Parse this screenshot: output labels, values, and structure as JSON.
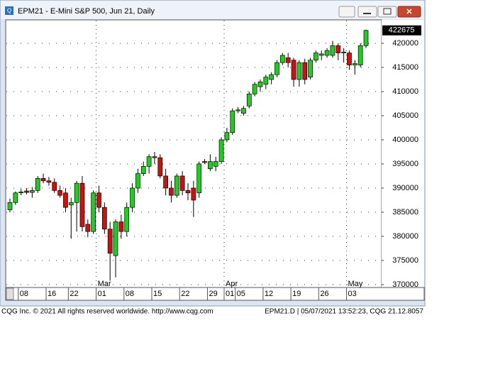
{
  "window_title": "EPM21 - E-Mini S&P 500, Jun 21, Daily",
  "chart_data": {
    "type": "candlestick",
    "categories": [
      null,
      null,
      "08",
      null,
      null,
      null,
      null,
      "16",
      null,
      null,
      null,
      "22",
      null,
      null,
      null,
      null,
      "01",
      null,
      null,
      null,
      null,
      "08",
      null,
      null,
      null,
      null,
      "15",
      null,
      null,
      null,
      null,
      "22",
      null,
      null,
      null,
      null,
      "29",
      null,
      null,
      "01",
      null,
      "05",
      null,
      null,
      null,
      null,
      "12",
      null,
      null,
      null,
      null,
      "19",
      null,
      null,
      null,
      null,
      "26",
      null,
      null,
      null,
      null,
      "03",
      null,
      null,
      null
    ],
    "month_categories": [
      null,
      null,
      null,
      null,
      null,
      null,
      null,
      null,
      null,
      null,
      null,
      null,
      null,
      null,
      null,
      null,
      "Mar",
      null,
      null,
      null,
      null,
      null,
      null,
      null,
      null,
      null,
      null,
      null,
      null,
      null,
      null,
      null,
      null,
      null,
      null,
      null,
      null,
      null,
      null,
      "Apr",
      null,
      null,
      null,
      null,
      null,
      null,
      null,
      null,
      null,
      null,
      null,
      null,
      null,
      null,
      null,
      null,
      null,
      null,
      null,
      null,
      null,
      "May",
      null,
      null,
      null
    ],
    "open": [
      385500,
      387000,
      389000,
      389400,
      389100,
      389500,
      392000,
      391500,
      391200,
      389500,
      389000,
      386500,
      387000,
      391000,
      382500,
      381000,
      389000,
      386000,
      381500,
      376000,
      383000,
      381000,
      386000,
      390000,
      393000,
      394500,
      396500,
      396300,
      392500,
      390000,
      388500,
      392500,
      389500,
      390000,
      389000,
      395500,
      394000,
      394500,
      395500,
      400000,
      401500,
      406000,
      405500,
      407000,
      409500,
      411000,
      411500,
      412500,
      413500,
      416000,
      417000,
      416500,
      412500,
      416000,
      413000,
      416500,
      417500,
      417500,
      417500,
      419500,
      418000,
      418000,
      415500,
      415500,
      419500
    ],
    "high": [
      387800,
      389300,
      389800,
      390000,
      390200,
      392500,
      393000,
      392300,
      392000,
      390500,
      390000,
      388000,
      391500,
      392500,
      383500,
      389500,
      390500,
      387000,
      383000,
      383500,
      384500,
      387000,
      391000,
      394000,
      395500,
      397000,
      397500,
      397000,
      394000,
      391500,
      393000,
      393500,
      391000,
      391500,
      395500,
      396000,
      397000,
      396500,
      400500,
      402500,
      406500,
      406800,
      407000,
      410000,
      412000,
      412500,
      413500,
      414000,
      416500,
      418000,
      418000,
      417000,
      416500,
      416800,
      417000,
      418500,
      418500,
      419000,
      420500,
      420000,
      419000,
      418500,
      416500,
      420000,
      422800
    ],
    "low": [
      385000,
      386500,
      388500,
      388700,
      388000,
      389000,
      391000,
      390500,
      389000,
      388000,
      385000,
      379500,
      381000,
      381000,
      379800,
      380500,
      385000,
      380500,
      370800,
      371500,
      379500,
      380000,
      385000,
      389000,
      392500,
      393000,
      395000,
      392000,
      388500,
      387000,
      388000,
      388500,
      387500,
      384000,
      388000,
      395000,
      393500,
      393500,
      395000,
      399500,
      401000,
      405500,
      405000,
      406500,
      409000,
      410000,
      410500,
      411500,
      413000,
      415500,
      415000,
      411000,
      411000,
      411500,
      412500,
      416000,
      416500,
      417000,
      417000,
      416500,
      416000,
      414500,
      413500,
      415000,
      419000
    ],
    "close": [
      387000,
      389000,
      389200,
      389100,
      389500,
      392000,
      391500,
      391200,
      389500,
      388500,
      386000,
      387000,
      391000,
      382000,
      381000,
      389000,
      386000,
      381500,
      376500,
      383000,
      381000,
      386000,
      390000,
      393000,
      394500,
      396500,
      396300,
      392500,
      390000,
      388500,
      392500,
      389500,
      389000,
      387500,
      395000,
      395300,
      395500,
      395500,
      400000,
      401500,
      406000,
      406200,
      406500,
      409500,
      411500,
      412000,
      413000,
      413500,
      416000,
      417500,
      416000,
      412500,
      416000,
      412500,
      416500,
      418000,
      417800,
      418500,
      419500,
      418000,
      418200,
      415500,
      415800,
      419500,
      422675
    ],
    "up_color": "#22cc22",
    "down_color": "#cc1111",
    "ylim": [
      369400,
      424850
    ],
    "yticks": [
      370000,
      375000,
      380000,
      385000,
      390000,
      395000,
      400000,
      405000,
      410000,
      415000,
      420000
    ],
    "last_price": 422675,
    "grid": true
  },
  "footer": {
    "left": "CQG Inc. © 2021 All rights reserved worldwide. http://www.cqg.com",
    "right": "EPM21.D | 05/07/2021 13:52:23, CQG 21.12.8057"
  }
}
